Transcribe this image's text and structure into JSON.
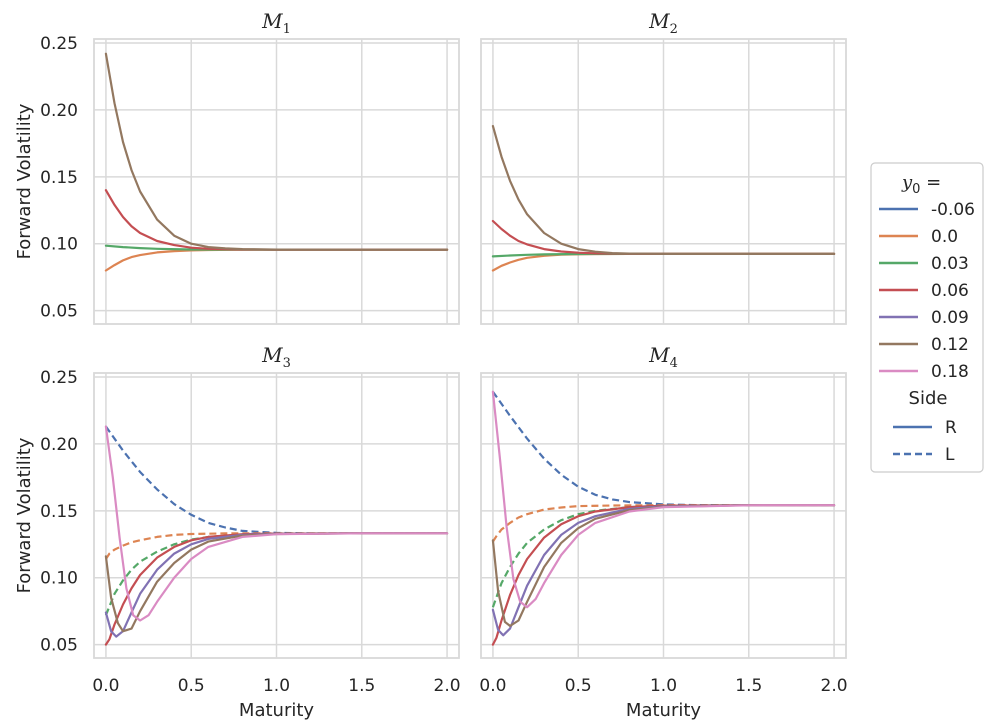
{
  "chart_data": {
    "type": "line",
    "layout": "2x2 small multiples, shared axes",
    "xlabel": "Maturity",
    "ylabel": "Forward Volatility",
    "xlim": [
      -0.07,
      2.07
    ],
    "ylim": [
      0.04,
      0.253
    ],
    "xticks": [
      0.0,
      0.5,
      1.0,
      1.5,
      2.0
    ],
    "xtick_labels": [
      "0.0",
      "0.5",
      "1.0",
      "1.5",
      "2.0"
    ],
    "yticks": [
      0.05,
      0.1,
      0.15,
      0.2,
      0.25
    ],
    "ytick_labels": [
      "0.05",
      "0.10",
      "0.15",
      "0.20",
      "0.25"
    ],
    "grid": true,
    "legend": {
      "placement": "right",
      "title_var": "y",
      "title_sub": "0",
      "title_suffix": " =",
      "entries": [
        {
          "label": "-0.06",
          "color": "#4c72b0"
        },
        {
          "label": "0.0",
          "color": "#dd8452"
        },
        {
          "label": "0.03",
          "color": "#55a868"
        },
        {
          "label": "0.06",
          "color": "#c44e52"
        },
        {
          "label": "0.09",
          "color": "#8172b3"
        },
        {
          "label": "0.12",
          "color": "#937860"
        },
        {
          "label": "0.18",
          "color": "#da8bc3"
        }
      ],
      "side_title": "Side",
      "side_entries": [
        {
          "label": "R",
          "dash": "solid",
          "color": "#4c72b0"
        },
        {
          "label": "L",
          "dash": "dashed",
          "color": "#4c72b0"
        }
      ]
    },
    "panels": [
      {
        "title_var": "M",
        "title_sub": "1",
        "series": [
          {
            "name": "0.0 R",
            "color": "#dd8452",
            "dash": "solid",
            "x": [
              0.0,
              0.05,
              0.1,
              0.15,
              0.2,
              0.3,
              0.4,
              0.5,
              0.6,
              0.8,
              1.0,
              1.5,
              2.0
            ],
            "y": [
              0.08,
              0.084,
              0.0875,
              0.09,
              0.0915,
              0.0935,
              0.0945,
              0.095,
              0.0953,
              0.0955,
              0.0955,
              0.0955,
              0.0955
            ]
          },
          {
            "name": "0.03 R",
            "color": "#55a868",
            "dash": "solid",
            "x": [
              0.0,
              0.1,
              0.2,
              0.3,
              0.5,
              0.8,
              1.0,
              1.5,
              2.0
            ],
            "y": [
              0.0985,
              0.0975,
              0.0967,
              0.0962,
              0.0957,
              0.0955,
              0.0955,
              0.0955,
              0.0955
            ]
          },
          {
            "name": "0.06 R",
            "color": "#c44e52",
            "dash": "solid",
            "x": [
              0.0,
              0.05,
              0.1,
              0.15,
              0.2,
              0.3,
              0.4,
              0.5,
              0.6,
              0.8,
              1.0,
              1.5,
              2.0
            ],
            "y": [
              0.14,
              0.129,
              0.12,
              0.113,
              0.108,
              0.102,
              0.099,
              0.097,
              0.0962,
              0.0957,
              0.0955,
              0.0955,
              0.0955
            ]
          },
          {
            "name": "0.12 R",
            "color": "#937860",
            "dash": "solid",
            "x": [
              0.0,
              0.05,
              0.1,
              0.15,
              0.2,
              0.3,
              0.4,
              0.5,
              0.6,
              0.7,
              0.8,
              1.0,
              1.5,
              2.0
            ],
            "y": [
              0.242,
              0.205,
              0.176,
              0.155,
              0.139,
              0.118,
              0.106,
              0.1,
              0.0975,
              0.0965,
              0.096,
              0.0956,
              0.0955,
              0.0955
            ]
          }
        ]
      },
      {
        "title_var": "M",
        "title_sub": "2",
        "series": [
          {
            "name": "0.0 R",
            "color": "#dd8452",
            "dash": "solid",
            "x": [
              0.0,
              0.05,
              0.1,
              0.15,
              0.2,
              0.3,
              0.4,
              0.5,
              0.6,
              0.8,
              1.0,
              1.5,
              2.0
            ],
            "y": [
              0.08,
              0.0835,
              0.086,
              0.088,
              0.0895,
              0.091,
              0.0918,
              0.0921,
              0.0923,
              0.0924,
              0.0924,
              0.0924,
              0.0924
            ]
          },
          {
            "name": "0.03 R",
            "color": "#55a868",
            "dash": "solid",
            "x": [
              0.0,
              0.1,
              0.2,
              0.3,
              0.5,
              0.8,
              1.0,
              1.5,
              2.0
            ],
            "y": [
              0.0905,
              0.0912,
              0.0917,
              0.092,
              0.0923,
              0.0924,
              0.0924,
              0.0924,
              0.0924
            ]
          },
          {
            "name": "0.06 R",
            "color": "#c44e52",
            "dash": "solid",
            "x": [
              0.0,
              0.05,
              0.1,
              0.15,
              0.2,
              0.3,
              0.4,
              0.5,
              0.6,
              0.8,
              1.0,
              1.5,
              2.0
            ],
            "y": [
              0.117,
              0.111,
              0.106,
              0.102,
              0.0995,
              0.096,
              0.0942,
              0.0933,
              0.0928,
              0.0925,
              0.0924,
              0.0924,
              0.0924
            ]
          },
          {
            "name": "0.12 R",
            "color": "#937860",
            "dash": "solid",
            "x": [
              0.0,
              0.05,
              0.1,
              0.15,
              0.2,
              0.3,
              0.4,
              0.5,
              0.6,
              0.7,
              0.8,
              1.0,
              1.5,
              2.0
            ],
            "y": [
              0.188,
              0.165,
              0.147,
              0.133,
              0.122,
              0.108,
              0.1,
              0.096,
              0.094,
              0.093,
              0.0926,
              0.0924,
              0.0924,
              0.0924
            ]
          }
        ]
      },
      {
        "title_var": "M",
        "title_sub": "3",
        "series": [
          {
            "name": "-0.06 L",
            "color": "#4c72b0",
            "dash": "dashed",
            "x": [
              0.0,
              0.1,
              0.2,
              0.3,
              0.4,
              0.5,
              0.6,
              0.7,
              0.8,
              1.0,
              1.2,
              1.5,
              2.0
            ],
            "y": [
              0.213,
              0.195,
              0.179,
              0.166,
              0.155,
              0.147,
              0.141,
              0.1375,
              0.135,
              0.1335,
              0.1332,
              0.1332,
              0.1332
            ]
          },
          {
            "name": "0.0 L",
            "color": "#dd8452",
            "dash": "dashed",
            "x": [
              0.0,
              0.02,
              0.05,
              0.1,
              0.15,
              0.2,
              0.3,
              0.4,
              0.5,
              0.7,
              1.0,
              1.5,
              2.0
            ],
            "y": [
              0.114,
              0.118,
              0.121,
              0.124,
              0.1265,
              0.128,
              0.1305,
              0.132,
              0.1327,
              0.1331,
              0.1332,
              0.1332,
              0.1332
            ]
          },
          {
            "name": "0.03 L",
            "color": "#55a868",
            "dash": "dashed",
            "x": [
              0.0,
              0.05,
              0.1,
              0.15,
              0.2,
              0.3,
              0.4,
              0.5,
              0.6,
              0.8,
              1.0,
              1.5,
              2.0
            ],
            "y": [
              0.072,
              0.088,
              0.098,
              0.106,
              0.112,
              0.1195,
              0.125,
              0.1285,
              0.1305,
              0.1322,
              0.1329,
              0.1332,
              0.1332
            ]
          },
          {
            "name": "0.06 R",
            "color": "#c44e52",
            "dash": "solid",
            "x": [
              0.0,
              0.02,
              0.05,
              0.1,
              0.15,
              0.2,
              0.3,
              0.4,
              0.5,
              0.6,
              0.8,
              1.0,
              1.5,
              2.0
            ],
            "y": [
              0.05,
              0.054,
              0.065,
              0.08,
              0.092,
              0.102,
              0.115,
              0.123,
              0.128,
              0.1305,
              0.1325,
              0.133,
              0.1332,
              0.1332
            ]
          },
          {
            "name": "0.09 R",
            "color": "#8172b3",
            "dash": "solid",
            "x": [
              0.0,
              0.03,
              0.06,
              0.1,
              0.15,
              0.2,
              0.3,
              0.4,
              0.5,
              0.6,
              0.8,
              1.0,
              1.5,
              2.0
            ],
            "y": [
              0.074,
              0.06,
              0.056,
              0.06,
              0.074,
              0.088,
              0.106,
              0.118,
              0.125,
              0.129,
              0.132,
              0.1328,
              0.1332,
              0.1332
            ]
          },
          {
            "name": "0.12 R",
            "color": "#937860",
            "dash": "solid",
            "x": [
              0.0,
              0.03,
              0.07,
              0.1,
              0.15,
              0.2,
              0.3,
              0.4,
              0.5,
              0.6,
              0.8,
              1.0,
              1.5,
              2.0
            ],
            "y": [
              0.116,
              0.085,
              0.066,
              0.06,
              0.062,
              0.075,
              0.097,
              0.111,
              0.121,
              0.127,
              0.1315,
              0.1327,
              0.1332,
              0.1332
            ]
          },
          {
            "name": "0.18 R",
            "color": "#da8bc3",
            "dash": "solid",
            "x": [
              0.0,
              0.04,
              0.08,
              0.12,
              0.16,
              0.2,
              0.25,
              0.3,
              0.4,
              0.5,
              0.6,
              0.8,
              1.0,
              1.5,
              2.0
            ],
            "y": [
              0.213,
              0.175,
              0.13,
              0.092,
              0.072,
              0.068,
              0.072,
              0.082,
              0.1,
              0.114,
              0.123,
              0.1305,
              0.1325,
              0.1332,
              0.1332
            ]
          }
        ]
      },
      {
        "title_var": "M",
        "title_sub": "4",
        "series": [
          {
            "name": "-0.06 L",
            "color": "#4c72b0",
            "dash": "dashed",
            "x": [
              0.0,
              0.1,
              0.2,
              0.3,
              0.4,
              0.5,
              0.6,
              0.7,
              0.8,
              1.0,
              1.2,
              1.5,
              2.0
            ],
            "y": [
              0.239,
              0.221,
              0.204,
              0.189,
              0.177,
              0.168,
              0.162,
              0.1585,
              0.1565,
              0.1548,
              0.1543,
              0.1542,
              0.1542
            ]
          },
          {
            "name": "0.0 L",
            "color": "#dd8452",
            "dash": "dashed",
            "x": [
              0.0,
              0.02,
              0.05,
              0.1,
              0.15,
              0.2,
              0.3,
              0.4,
              0.5,
              0.7,
              1.0,
              1.5,
              2.0
            ],
            "y": [
              0.127,
              0.131,
              0.136,
              0.141,
              0.145,
              0.1475,
              0.151,
              0.1525,
              0.1535,
              0.154,
              0.1542,
              0.1542,
              0.1542
            ]
          },
          {
            "name": "0.03 L",
            "color": "#55a868",
            "dash": "dashed",
            "x": [
              0.0,
              0.05,
              0.1,
              0.15,
              0.2,
              0.3,
              0.4,
              0.5,
              0.6,
              0.8,
              1.0,
              1.5,
              2.0
            ],
            "y": [
              0.078,
              0.096,
              0.108,
              0.118,
              0.126,
              0.136,
              0.143,
              0.1475,
              0.15,
              0.1528,
              0.1538,
              0.1542,
              0.1542
            ]
          },
          {
            "name": "0.06 R",
            "color": "#c44e52",
            "dash": "solid",
            "x": [
              0.0,
              0.02,
              0.05,
              0.1,
              0.15,
              0.2,
              0.3,
              0.4,
              0.5,
              0.6,
              0.8,
              1.0,
              1.5,
              2.0
            ],
            "y": [
              0.05,
              0.055,
              0.068,
              0.087,
              0.102,
              0.114,
              0.13,
              0.14,
              0.146,
              0.1495,
              0.1528,
              0.1538,
              0.1542,
              0.1542
            ]
          },
          {
            "name": "0.09 R",
            "color": "#8172b3",
            "dash": "solid",
            "x": [
              0.0,
              0.03,
              0.06,
              0.1,
              0.15,
              0.2,
              0.3,
              0.4,
              0.5,
              0.6,
              0.8,
              1.0,
              1.5,
              2.0
            ],
            "y": [
              0.076,
              0.061,
              0.057,
              0.062,
              0.078,
              0.094,
              0.117,
              0.132,
              0.141,
              0.146,
              0.1515,
              0.1533,
              0.1542,
              0.1542
            ]
          },
          {
            "name": "0.12 R",
            "color": "#937860",
            "dash": "solid",
            "x": [
              0.0,
              0.03,
              0.07,
              0.1,
              0.15,
              0.2,
              0.3,
              0.4,
              0.5,
              0.6,
              0.8,
              1.0,
              1.5,
              2.0
            ],
            "y": [
              0.128,
              0.09,
              0.067,
              0.064,
              0.068,
              0.082,
              0.108,
              0.126,
              0.137,
              0.144,
              0.1505,
              0.153,
              0.1542,
              0.1542
            ]
          },
          {
            "name": "0.18 R",
            "color": "#da8bc3",
            "dash": "solid",
            "x": [
              0.0,
              0.04,
              0.08,
              0.12,
              0.16,
              0.2,
              0.25,
              0.3,
              0.4,
              0.5,
              0.6,
              0.8,
              1.0,
              1.5,
              2.0
            ],
            "y": [
              0.239,
              0.19,
              0.138,
              0.099,
              0.082,
              0.078,
              0.084,
              0.096,
              0.117,
              0.132,
              0.141,
              0.1495,
              0.1527,
              0.1541,
              0.1542
            ]
          }
        ]
      }
    ]
  }
}
